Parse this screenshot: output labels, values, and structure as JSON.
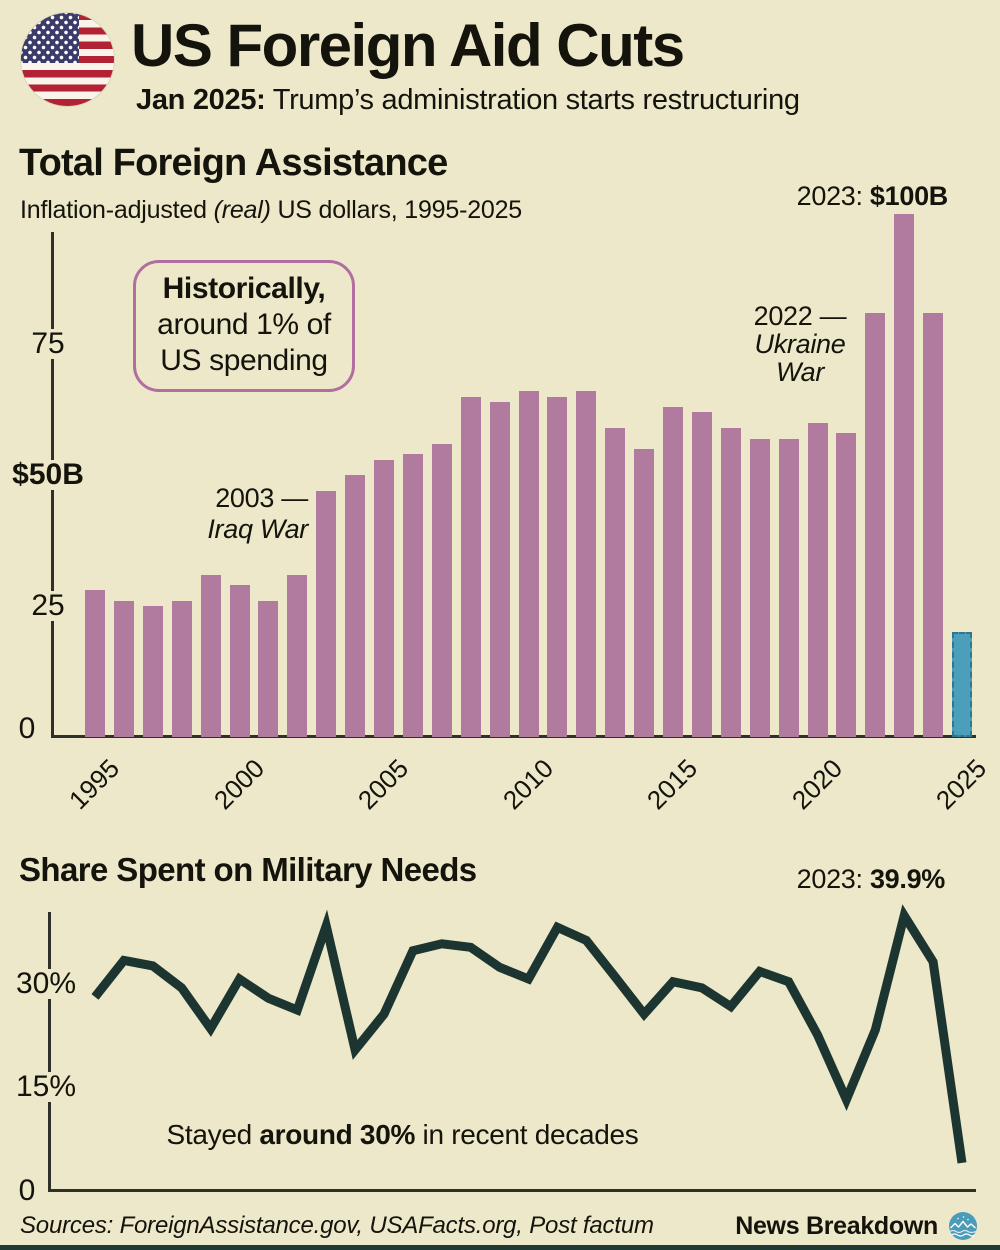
{
  "header": {
    "title": "US Foreign Aid Cuts",
    "date_label": "Jan 2025:",
    "date_text": " Trump’s administration starts restructuring"
  },
  "bar_section": {
    "title": "Total Foreign Assistance",
    "subtitle_pre": "Inflation-adjusted ",
    "subtitle_em": "(real)",
    "subtitle_post": " US dollars, 1995-2025",
    "peak_year": "2023: ",
    "peak_value": "$100B",
    "note_line1": "Historically,",
    "note_line2": "around 1% of",
    "note_line3": "US spending",
    "iraq_line1": "2003 —",
    "iraq_line2": "Iraq War",
    "ukraine_line1": "2022 —",
    "ukraine_line2": "Ukraine",
    "ukraine_line3": "War"
  },
  "line_section": {
    "title": "Share Spent on Military Needs",
    "peak_year": "2023: ",
    "peak_value": "39.9%",
    "note_pre": "Stayed ",
    "note_bold": "around 30%",
    "note_post": " in recent decades"
  },
  "footer": {
    "sources": "Sources: ForeignAssistance.gov, USAFacts.org, Post factum",
    "brand": "News Breakdown"
  },
  "colors": {
    "background": "#ece8c9",
    "bar": "#b17ba0",
    "bar_highlight": "#4b9fbc",
    "line": "#1c3531",
    "axis": "#30302a",
    "note_border": "#b06fa0",
    "bottom_strip": "#203b34"
  },
  "chart_data": [
    {
      "type": "bar",
      "title": "Total Foreign Assistance",
      "ylabel": "Inflation-adjusted (real) US dollars, billions",
      "x": [
        1995,
        1996,
        1997,
        1998,
        1999,
        2000,
        2001,
        2002,
        2003,
        2004,
        2005,
        2006,
        2007,
        2008,
        2009,
        2010,
        2011,
        2012,
        2013,
        2014,
        2015,
        2016,
        2017,
        2018,
        2019,
        2020,
        2021,
        2022,
        2023,
        2024,
        2025
      ],
      "values": [
        28,
        26,
        25,
        26,
        31,
        29,
        26,
        31,
        47,
        50,
        53,
        54,
        56,
        65,
        64,
        66,
        65,
        66,
        59,
        55,
        63,
        62,
        59,
        57,
        57,
        60,
        58,
        81,
        100,
        81,
        20
      ],
      "highlight_year": 2025,
      "ylim": [
        0,
        100
      ],
      "yticks": [
        {
          "label": "75",
          "value": 75,
          "bold": false
        },
        {
          "label": "$50B",
          "value": 50,
          "bold": true
        },
        {
          "label": "25",
          "value": 25,
          "bold": false
        },
        {
          "label": "0",
          "value": 0,
          "bold": false
        }
      ],
      "xticks": [
        1995,
        2000,
        2005,
        2010,
        2015,
        2020,
        2025
      ],
      "annotations": [
        "Historically, around 1% of US spending",
        "2003 — Iraq War",
        "2022 — Ukraine War",
        "2023: $100B"
      ]
    },
    {
      "type": "line",
      "title": "Share Spent on Military Needs",
      "ylabel": "percent",
      "x": [
        1995,
        1996,
        1997,
        1998,
        1999,
        2000,
        2001,
        2002,
        2003,
        2004,
        2005,
        2006,
        2007,
        2008,
        2009,
        2010,
        2011,
        2012,
        2013,
        2014,
        2015,
        2016,
        2017,
        2018,
        2019,
        2020,
        2021,
        2022,
        2023,
        2024,
        2025
      ],
      "values": [
        28.1,
        33.4,
        32.6,
        29.4,
        23.5,
        30.7,
        27.9,
        26.2,
        38.4,
        20.4,
        25.6,
        34.8,
        35.8,
        35.3,
        32.4,
        30.7,
        38.2,
        36.3,
        31.0,
        25.6,
        30.3,
        29.4,
        26.7,
        31.8,
        30.3,
        22.6,
        13.2,
        23.3,
        39.9,
        33.2,
        4.0
      ],
      "ylim": [
        0,
        42
      ],
      "yticks": [
        {
          "label": "30%",
          "value": 30,
          "bold": false
        },
        {
          "label": "15%",
          "value": 15,
          "bold": false
        },
        {
          "label": "0",
          "value": 0,
          "bold": false
        }
      ],
      "annotations": [
        "Stayed around 30% in recent decades",
        "2023: 39.9%"
      ]
    }
  ]
}
